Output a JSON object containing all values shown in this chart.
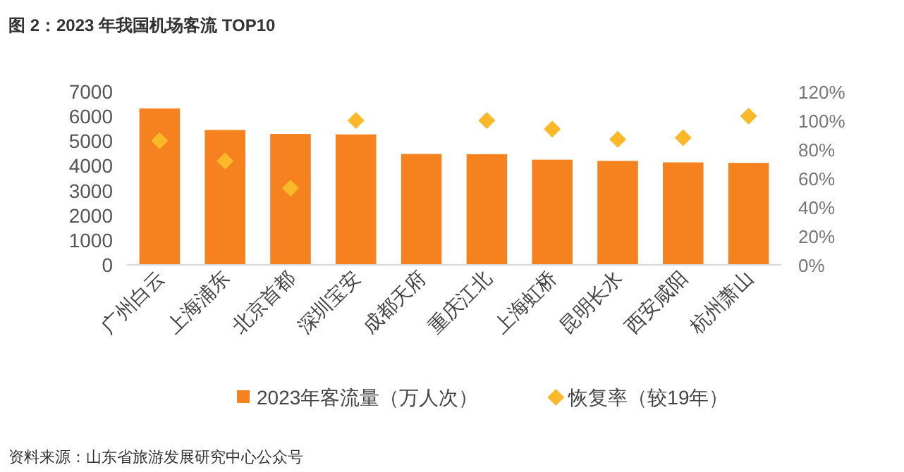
{
  "chart_data": {
    "type": "bar",
    "title": "图 2：2023 年我国机场客流 TOP10",
    "categories": [
      "广州白云",
      "上海浦东",
      "北京首都",
      "深圳宝安",
      "成都天府",
      "重庆江北",
      "上海虹桥",
      "昆明长水",
      "西安咸阳",
      "杭州萧山"
    ],
    "series": [
      {
        "name": "2023年客流量（万人次）",
        "color": "#f5821f",
        "values": [
          6320,
          5450,
          5290,
          5270,
          4480,
          4470,
          4250,
          4200,
          4140,
          4120
        ]
      },
      {
        "name": "恢复率（较19年）",
        "type": "scatter",
        "axis": "y2",
        "marker": "diamond",
        "color": "#fbb829",
        "values": [
          86,
          72,
          53,
          100,
          null,
          100,
          94,
          87,
          88,
          103
        ]
      }
    ],
    "ylim": [
      0,
      7000
    ],
    "yticks": [
      0,
      1000,
      2000,
      3000,
      4000,
      5000,
      6000,
      7000
    ],
    "y2lim": [
      0,
      120
    ],
    "y2ticks": [
      {
        "value": 0,
        "label": "0%"
      },
      {
        "value": 20,
        "label": "20%"
      },
      {
        "value": 40,
        "label": "40%"
      },
      {
        "value": 60,
        "label": "60%"
      },
      {
        "value": 80,
        "label": "80%"
      },
      {
        "value": 100,
        "label": "100%"
      },
      {
        "value": 120,
        "label": "120%"
      }
    ],
    "legend": "bottom",
    "grid": false,
    "annotations": [
      "资料来源：山东省旅游发展研究中心公众号"
    ]
  }
}
